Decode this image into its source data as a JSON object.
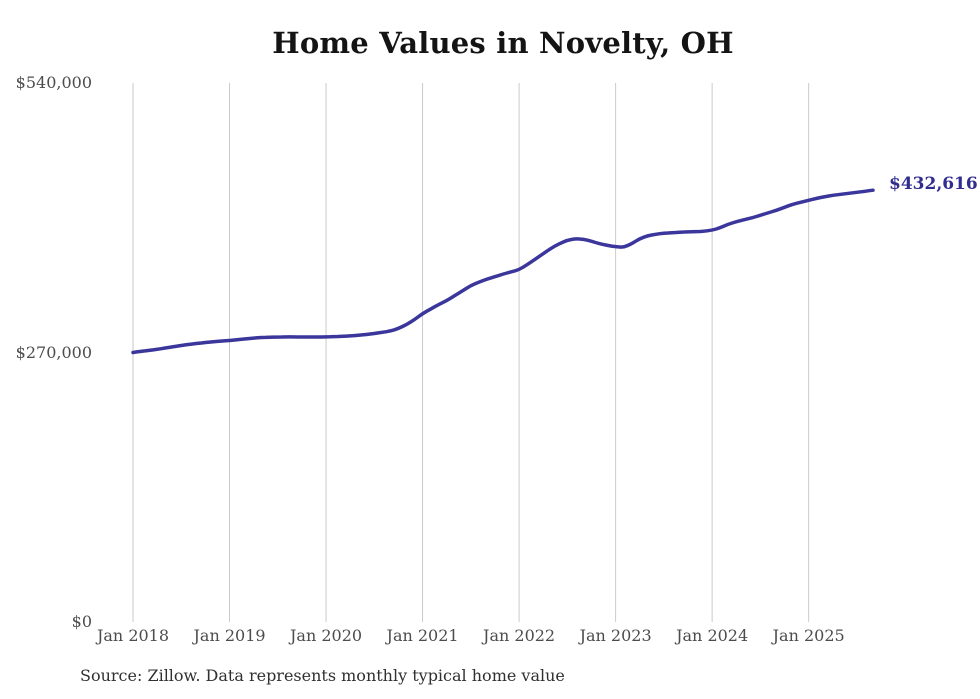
{
  "colors": {
    "line": "#3b369b",
    "end_label": "#312d8f",
    "grid": "#cacaca",
    "axis_text": "#4c4c4c",
    "title_text": "#141414",
    "source_text": "#303030",
    "background": "#ffffff"
  },
  "source_note": "Source: Zillow. Data represents monthly typical home value",
  "chart_data": {
    "type": "line",
    "title": "Home Values in Novelty, OH",
    "xlabel": "",
    "ylabel": "",
    "ylim": [
      0,
      540000
    ],
    "grid": "vertical-only",
    "legend": "none",
    "x_tick_labels": [
      "Jan 2018",
      "Jan 2019",
      "Jan 2020",
      "Jan 2021",
      "Jan 2022",
      "Jan 2023",
      "Jan 2024",
      "Jan 2025"
    ],
    "x_tick_month_indices": [
      0,
      12,
      24,
      36,
      48,
      60,
      72,
      84
    ],
    "y_ticks": [
      {
        "value": 0,
        "label": "$0"
      },
      {
        "value": 270000,
        "label": "$270,000"
      },
      {
        "value": 540000,
        "label": "$540,000"
      }
    ],
    "end_label": "$432,616",
    "last_value": 432616,
    "series": [
      {
        "name": "Monthly typical home value",
        "start": "2018-01",
        "end": "2025-09",
        "frequency": "monthly",
        "values": [
          270000,
          271200,
          272100,
          273200,
          274500,
          275800,
          277000,
          278200,
          279100,
          280000,
          280800,
          281400,
          282000,
          282800,
          283600,
          284400,
          285000,
          285300,
          285500,
          285600,
          285600,
          285500,
          285500,
          285500,
          285600,
          285900,
          286200,
          286600,
          287200,
          288000,
          289000,
          290200,
          291500,
          294000,
          298000,
          303000,
          309000,
          313500,
          318000,
          322000,
          327000,
          332000,
          337000,
          340500,
          343500,
          346000,
          348500,
          350800,
          353000,
          358000,
          363500,
          369000,
          374500,
          379000,
          382500,
          384000,
          383500,
          381500,
          379000,
          377200,
          376000,
          375300,
          379000,
          384000,
          387000,
          388500,
          389500,
          390000,
          390500,
          391000,
          391000,
          391500,
          392500,
          395000,
          398500,
          401000,
          403000,
          405000,
          407500,
          410000,
          412500,
          415500,
          418500,
          420500,
          422500,
          424500,
          426000,
          427500,
          428500,
          429500,
          430500,
          431500,
          432616
        ]
      }
    ]
  }
}
